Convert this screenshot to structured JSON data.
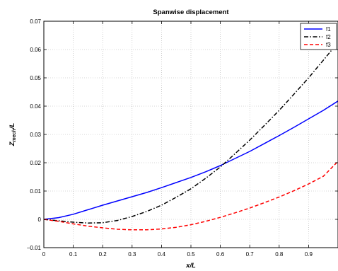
{
  "chart_data": {
    "type": "line",
    "title": "Spanwise displacement",
    "xlabel": "x/L",
    "ylabel_main": "Z",
    "ylabel_sub": "mech",
    "ylabel_suffix": "/L",
    "xlim": [
      0,
      1
    ],
    "ylim": [
      -0.01,
      0.07
    ],
    "x_ticks": [
      0,
      0.1,
      0.2,
      0.3,
      0.4,
      0.5,
      0.6,
      0.7,
      0.8,
      0.9
    ],
    "x_tick_labels": [
      "0",
      "0.1",
      "0.2",
      "0.3",
      "0.4",
      "0.5",
      "0.6",
      "0.7",
      "0.8",
      "0.9"
    ],
    "y_ticks": [
      -0.01,
      0,
      0.01,
      0.02,
      0.03,
      0.04,
      0.05,
      0.06,
      0.07
    ],
    "y_tick_labels": [
      "−0.01",
      "0",
      "0.01",
      "0.02",
      "0.03",
      "0.04",
      "0.05",
      "0.06",
      "0.07"
    ],
    "grid": true,
    "legend_position": "top-right",
    "series": [
      {
        "name": "f1",
        "color": "#0000ff",
        "dash": "solid",
        "x": [
          0,
          0.05,
          0.1,
          0.15,
          0.2,
          0.25,
          0.3,
          0.35,
          0.4,
          0.45,
          0.5,
          0.55,
          0.6,
          0.65,
          0.7,
          0.75,
          0.8,
          0.85,
          0.9,
          0.95,
          1.0
        ],
        "y": [
          0,
          0.0006,
          0.0018,
          0.0034,
          0.005,
          0.0065,
          0.008,
          0.0095,
          0.0112,
          0.013,
          0.0148,
          0.0168,
          0.019,
          0.0215,
          0.024,
          0.0268,
          0.0296,
          0.0325,
          0.0355,
          0.0385,
          0.0418
        ]
      },
      {
        "name": "f2",
        "color": "#000000",
        "dash": "dashdot",
        "x": [
          0,
          0.05,
          0.1,
          0.15,
          0.2,
          0.25,
          0.3,
          0.35,
          0.4,
          0.45,
          0.5,
          0.55,
          0.6,
          0.65,
          0.7,
          0.75,
          0.8,
          0.85,
          0.9,
          0.95,
          0.98
        ],
        "y": [
          0,
          -0.0005,
          -0.001,
          -0.0013,
          -0.0012,
          -0.0004,
          0.001,
          0.0028,
          0.005,
          0.0078,
          0.0108,
          0.0145,
          0.0185,
          0.0232,
          0.028,
          0.0332,
          0.0385,
          0.0442,
          0.05,
          0.0562,
          0.06
        ]
      },
      {
        "name": "f3",
        "color": "#ff0000",
        "dash": "dashed",
        "x": [
          0,
          0.05,
          0.1,
          0.15,
          0.2,
          0.25,
          0.3,
          0.35,
          0.4,
          0.45,
          0.5,
          0.55,
          0.6,
          0.65,
          0.7,
          0.75,
          0.8,
          0.85,
          0.9,
          0.95,
          1.0
        ],
        "y": [
          0,
          -0.0007,
          -0.0016,
          -0.0024,
          -0.003,
          -0.0035,
          -0.0037,
          -0.0037,
          -0.0034,
          -0.0028,
          -0.0019,
          -0.0007,
          0.0007,
          0.0023,
          0.004,
          0.0059,
          0.0079,
          0.0101,
          0.0125,
          0.0152,
          0.0205
        ]
      }
    ]
  }
}
